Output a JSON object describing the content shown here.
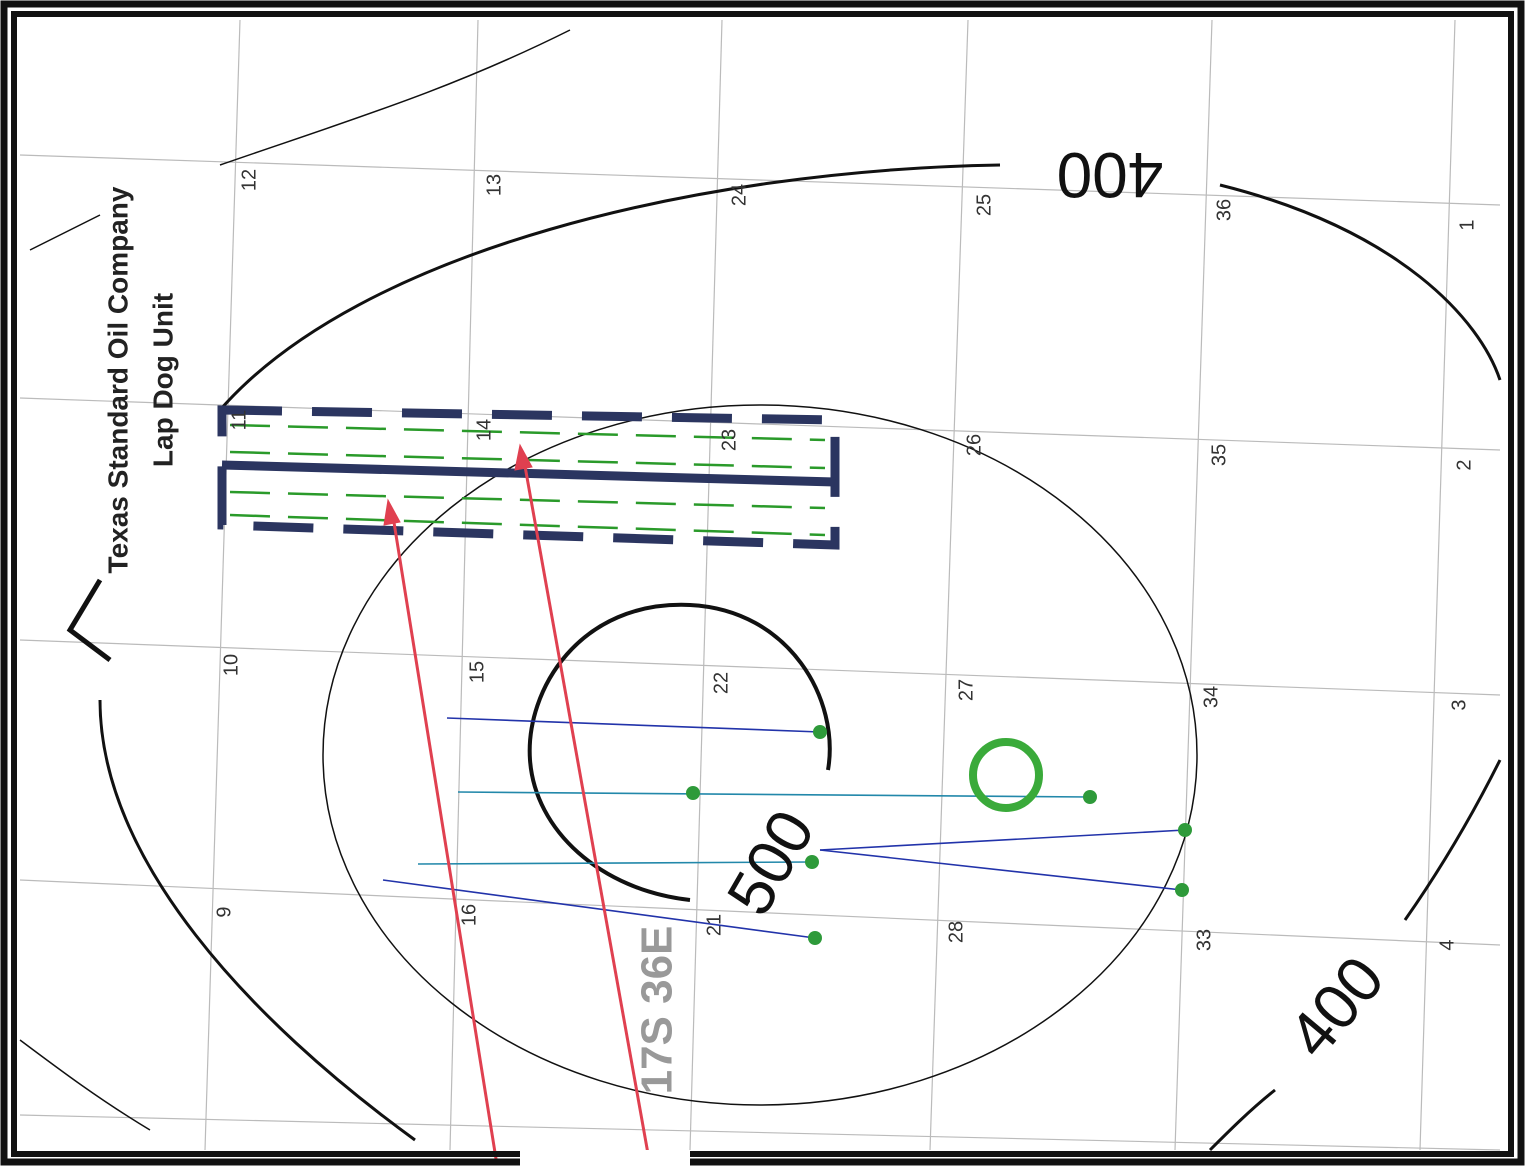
{
  "title": {
    "company": "Texas Standard Oil Company",
    "unit": "Lap Dog Unit"
  },
  "sections": [
    {
      "label": "12"
    },
    {
      "label": "13"
    },
    {
      "label": "24"
    },
    {
      "label": "25"
    },
    {
      "label": "36"
    },
    {
      "label": "1"
    },
    {
      "label": "11"
    },
    {
      "label": "14"
    },
    {
      "label": "23"
    },
    {
      "label": "26"
    },
    {
      "label": "35"
    },
    {
      "label": "2"
    },
    {
      "label": "10"
    },
    {
      "label": "15"
    },
    {
      "label": "22"
    },
    {
      "label": "27"
    },
    {
      "label": "34"
    },
    {
      "label": "3"
    },
    {
      "label": "9"
    },
    {
      "label": "16"
    },
    {
      "label": "21"
    },
    {
      "label": "28"
    },
    {
      "label": "33"
    },
    {
      "label": "4"
    }
  ],
  "contours": [
    {
      "label": "400"
    },
    {
      "label": "500"
    },
    {
      "label": "400"
    }
  ],
  "township": "17S 36E"
}
